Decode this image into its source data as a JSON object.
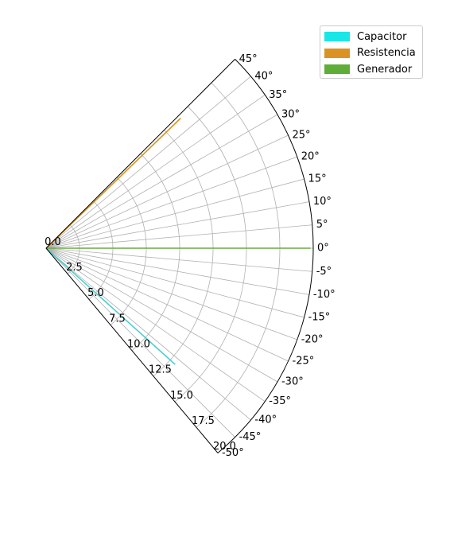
{
  "chart_data": {
    "type": "polar-line",
    "theta_range_deg": [
      -50,
      45
    ],
    "r_range": [
      0,
      20
    ],
    "theta_ticks": [
      "45°",
      "40°",
      "35°",
      "30°",
      "25°",
      "20°",
      "15°",
      "10°",
      "5°",
      "0°",
      "-5°",
      "-10°",
      "-15°",
      "-20°",
      "-25°",
      "-30°",
      "-35°",
      "-40°",
      "-45°",
      "-50°"
    ],
    "theta_tick_values": [
      45,
      40,
      35,
      30,
      25,
      20,
      15,
      10,
      5,
      0,
      -5,
      -10,
      -15,
      -20,
      -25,
      -30,
      -35,
      -40,
      -45,
      -50
    ],
    "r_ticks": [
      "0.0",
      "2.5",
      "5.0",
      "7.5",
      "10.0",
      "12.5",
      "15.0",
      "17.5",
      "20.0"
    ],
    "r_tick_values": [
      0,
      2.5,
      5,
      7.5,
      10,
      12.5,
      15,
      17.5,
      20
    ],
    "grid": true,
    "legend_position": "top-right",
    "series": [
      {
        "name": "Capacitor",
        "color": "#19e6e6",
        "line_color": "#4dcfcf",
        "theta_deg": [
          -42,
          -42
        ],
        "r": [
          0,
          13.0
        ]
      },
      {
        "name": "Resistencia",
        "color": "#dc9222",
        "line_color": "#d9951f",
        "theta_deg": [
          44,
          44
        ],
        "r": [
          0,
          14.0
        ]
      },
      {
        "name": "Generador",
        "color": "#5fae37",
        "line_color": "#6aaa45",
        "theta_deg": [
          0,
          0
        ],
        "r": [
          0,
          19.8
        ]
      }
    ]
  }
}
